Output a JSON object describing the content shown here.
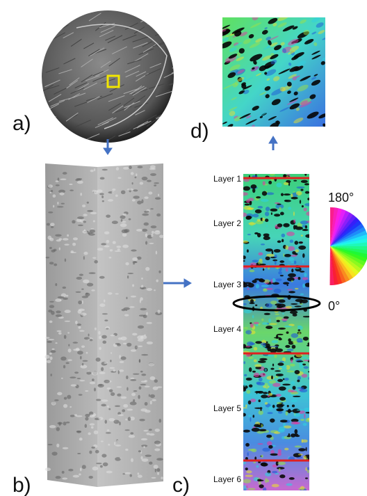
{
  "panels": {
    "a": "a)",
    "b": "b)",
    "c": "c)",
    "d": "d)"
  },
  "layers": [
    "Layer 1",
    "Layer 2",
    "Layer 3",
    "Layer 4",
    "Layer 5",
    "Layer 6"
  ],
  "color_wheel": {
    "top": "180°",
    "bottom": "0°"
  }
}
